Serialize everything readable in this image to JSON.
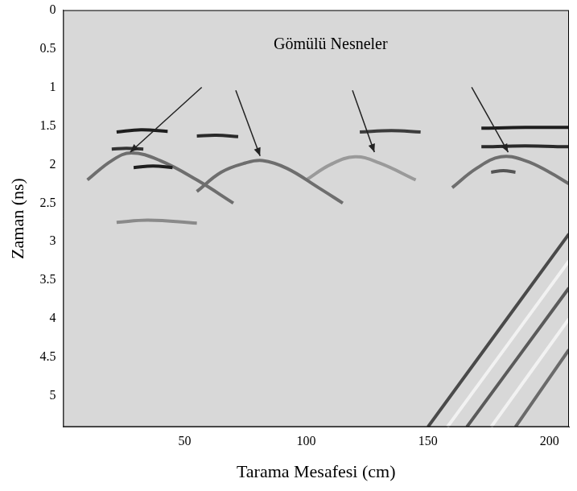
{
  "chart_data": {
    "type": "line",
    "x_label": "Tarama Mesafesi (cm)",
    "y_label": "Zaman (ns)",
    "xlim": [
      0,
      208
    ],
    "ylim": [
      0,
      5.4
    ],
    "xticks": [
      50,
      100,
      150,
      200
    ],
    "yticks": [
      0,
      0.5,
      1,
      1.5,
      2,
      2.5,
      3,
      3.5,
      4,
      4.5,
      5
    ],
    "grid": false,
    "annotation": {
      "text": "Gömülü Nesneler",
      "x": 110,
      "y": 0.45,
      "arrows": [
        {
          "from": [
            57,
            1.0
          ],
          "to": [
            27.6,
            1.84
          ]
        },
        {
          "from": [
            71,
            1.04
          ],
          "to": [
            81,
            1.89
          ]
        },
        {
          "from": [
            119,
            1.04
          ],
          "to": [
            128,
            1.84
          ]
        },
        {
          "from": [
            168,
            1.0
          ],
          "to": [
            183,
            1.84
          ]
        }
      ]
    },
    "series": [
      {
        "color": "#1e1e1e",
        "x": [
          22,
          32,
          43
        ],
        "values": [
          1.58,
          1.55,
          1.57
        ]
      },
      {
        "color": "#2a2a2a",
        "x": [
          55,
          63,
          72
        ],
        "values": [
          1.63,
          1.62,
          1.64
        ]
      },
      {
        "color": "#3c3c3c",
        "x": [
          122,
          135,
          147
        ],
        "values": [
          1.58,
          1.56,
          1.58
        ]
      },
      {
        "color": "#1e1e1e",
        "x": [
          172,
          190,
          208
        ],
        "values": [
          1.53,
          1.52,
          1.52
        ]
      },
      {
        "color": "#2a2a2a",
        "x": [
          172,
          190,
          208
        ],
        "values": [
          1.77,
          1.76,
          1.77
        ]
      },
      {
        "color": "#333333",
        "x": [
          20,
          26,
          33
        ],
        "values": [
          1.8,
          1.79,
          1.8
        ]
      },
      {
        "color": "#1e1e1e",
        "x": [
          29,
          37,
          45
        ],
        "values": [
          2.04,
          2.02,
          2.04
        ]
      },
      {
        "color": "#555555",
        "x": [
          176,
          181,
          186
        ],
        "values": [
          2.1,
          2.08,
          2.1
        ]
      },
      {
        "color": "#8a8a8a",
        "x": [
          22,
          35,
          55
        ],
        "values": [
          2.75,
          2.72,
          2.76
        ]
      },
      {
        "color": "#6e6e6e",
        "x": [
          10,
          20,
          28,
          40,
          55,
          70
        ],
        "values": [
          2.2,
          1.95,
          1.85,
          1.95,
          2.2,
          2.5
        ]
      },
      {
        "color": "#6e6e6e",
        "x": [
          55,
          65,
          75,
          82,
          92,
          105,
          115
        ],
        "values": [
          2.35,
          2.1,
          1.98,
          1.95,
          2.05,
          2.3,
          2.5
        ]
      },
      {
        "color": "#9a9a9a",
        "x": [
          100,
          110,
          120,
          130,
          145
        ],
        "values": [
          2.2,
          2.0,
          1.9,
          1.98,
          2.2
        ]
      },
      {
        "color": "#6e6e6e",
        "x": [
          160,
          170,
          180,
          190,
          200,
          208
        ],
        "values": [
          2.3,
          2.05,
          1.9,
          1.95,
          2.1,
          2.25
        ]
      },
      {
        "color": "#4a4a4a",
        "x": [
          150,
          208
        ],
        "values": [
          5.4,
          2.9
        ]
      },
      {
        "color": "#f2f2f2",
        "x": [
          158,
          208
        ],
        "values": [
          5.4,
          3.25
        ]
      },
      {
        "color": "#5a5a5a",
        "x": [
          166,
          208
        ],
        "values": [
          5.4,
          3.6
        ]
      },
      {
        "color": "#f2f2f2",
        "x": [
          176,
          208
        ],
        "values": [
          5.4,
          4.0
        ]
      },
      {
        "color": "#6a6a6a",
        "x": [
          186,
          208
        ],
        "values": [
          5.4,
          4.4
        ]
      }
    ]
  }
}
